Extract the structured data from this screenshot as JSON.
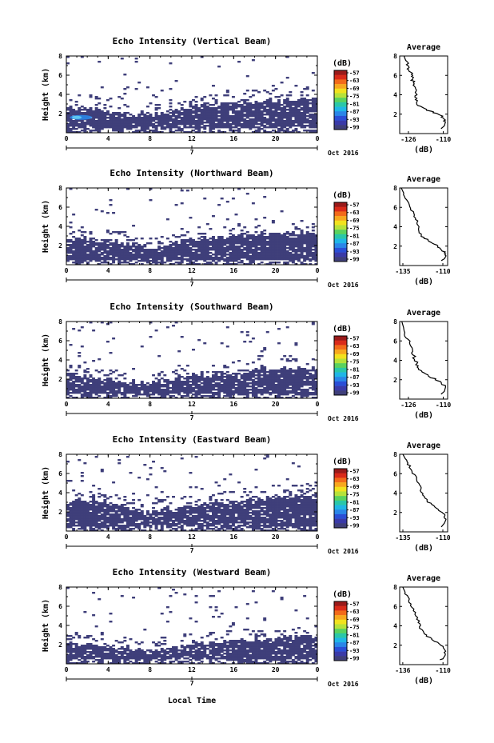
{
  "figure": {
    "xlabel": "Local Time",
    "date_label": "Oct 2016",
    "day_label": "7",
    "colorbar_unit": "(dB)",
    "colorbar_ticks": [
      "-57",
      "-63",
      "-69",
      "-75",
      "-81",
      "-87",
      "-93",
      "-99"
    ],
    "colorbar_colors": [
      "#9a1a1a",
      "#d92a1a",
      "#f26a1a",
      "#f7a81e",
      "#f2e21e",
      "#b6e23a",
      "#5ad25e",
      "#2ac7a8",
      "#20b6e6",
      "#2a86e8",
      "#2a4ed6",
      "#3a3aa8",
      "#3f3f7a"
    ],
    "echo_color": "#3f3f7a",
    "avg_title": "Average",
    "avg_xlabel": "(dB)"
  },
  "chart_data": [
    {
      "type": "heatmap",
      "title": "Echo Intensity (Vertical Beam)",
      "ylabel": "Height (km)",
      "xlim": [
        0,
        24
      ],
      "ylim": [
        0,
        8
      ],
      "xticks": [
        "0",
        "4",
        "8",
        "12",
        "16",
        "20",
        "0"
      ],
      "yticks": [
        "2",
        "4",
        "6",
        "8"
      ],
      "layer_top_km": [
        [
          0,
          2.8
        ],
        [
          2,
          2.6
        ],
        [
          4,
          2.2
        ],
        [
          6,
          1.9
        ],
        [
          8,
          2.0
        ],
        [
          10,
          2.2
        ],
        [
          12,
          2.9
        ],
        [
          14,
          3.0
        ],
        [
          16,
          3.1
        ],
        [
          18,
          3.3
        ],
        [
          20,
          3.4
        ],
        [
          22,
          3.5
        ],
        [
          24,
          3.5
        ]
      ],
      "enhanced_echo": "light blue near 0-3 LT at 1.5-2 km",
      "average_profile": {
        "title": "Average",
        "xticks": [
          "-126",
          "-110"
        ],
        "xlim": [
          -130,
          -108
        ],
        "ylim": [
          0,
          8
        ],
        "yticks": [
          "2",
          "4",
          "6",
          "8"
        ],
        "points": [
          [
            -128,
            8.0
          ],
          [
            -127,
            7.4
          ],
          [
            -126,
            6.8
          ],
          [
            -125,
            6.3
          ],
          [
            -124.5,
            5.9
          ],
          [
            -124,
            5.5
          ],
          [
            -123.5,
            5.0
          ],
          [
            -123,
            4.5
          ],
          [
            -122.5,
            4.0
          ],
          [
            -122.5,
            3.5
          ],
          [
            -122,
            3.1
          ],
          [
            -120,
            2.7
          ],
          [
            -116,
            2.3
          ],
          [
            -112,
            2.0
          ],
          [
            -110,
            1.6
          ],
          [
            -109,
            1.2
          ],
          [
            -109.5,
            0.8
          ],
          [
            -111,
            0.5
          ]
        ]
      }
    },
    {
      "type": "heatmap",
      "title": "Echo Intensity (Northward Beam)",
      "ylabel": "Height (km)",
      "xlim": [
        0,
        24
      ],
      "ylim": [
        0,
        8
      ],
      "xticks": [
        "0",
        "4",
        "8",
        "12",
        "16",
        "20",
        "0"
      ],
      "yticks": [
        "2",
        "4",
        "6",
        "8"
      ],
      "layer_top_km": [
        [
          0,
          2.7
        ],
        [
          2,
          2.7
        ],
        [
          4,
          2.5
        ],
        [
          6,
          2.0
        ],
        [
          8,
          1.8
        ],
        [
          10,
          2.2
        ],
        [
          12,
          2.7
        ],
        [
          14,
          2.9
        ],
        [
          16,
          3.0
        ],
        [
          18,
          3.1
        ],
        [
          20,
          3.2
        ],
        [
          22,
          3.4
        ],
        [
          24,
          3.4
        ]
      ],
      "average_profile": {
        "title": "Average",
        "xticks": [
          "-135",
          "-110"
        ],
        "xlim": [
          -137,
          -107
        ],
        "ylim": [
          0,
          8
        ],
        "yticks": [
          "2",
          "4",
          "6",
          "8"
        ],
        "points": [
          [
            -136,
            8.0
          ],
          [
            -134,
            7.3
          ],
          [
            -132,
            6.6
          ],
          [
            -130,
            5.9
          ],
          [
            -128,
            5.2
          ],
          [
            -126,
            4.6
          ],
          [
            -125,
            4.0
          ],
          [
            -125,
            3.5
          ],
          [
            -123,
            3.0
          ],
          [
            -119,
            2.6
          ],
          [
            -115,
            2.2
          ],
          [
            -112,
            1.8
          ],
          [
            -109,
            1.4
          ],
          [
            -108,
            1.0
          ],
          [
            -109,
            0.7
          ],
          [
            -111,
            0.5
          ]
        ]
      }
    },
    {
      "type": "heatmap",
      "title": "Echo Intensity (Southward Beam)",
      "ylabel": "Height (km)",
      "xlim": [
        0,
        24
      ],
      "ylim": [
        0,
        8
      ],
      "xticks": [
        "0",
        "4",
        "8",
        "12",
        "16",
        "20",
        "0"
      ],
      "yticks": [
        "2",
        "4",
        "6",
        "8"
      ],
      "layer_top_km": [
        [
          0,
          2.4
        ],
        [
          2,
          2.3
        ],
        [
          4,
          2.1
        ],
        [
          6,
          1.7
        ],
        [
          8,
          1.6
        ],
        [
          10,
          1.9
        ],
        [
          12,
          2.4
        ],
        [
          14,
          2.6
        ],
        [
          16,
          2.8
        ],
        [
          18,
          3.0
        ],
        [
          20,
          3.1
        ],
        [
          22,
          3.2
        ],
        [
          24,
          3.2
        ]
      ],
      "average_profile": {
        "title": "Average",
        "xticks": [
          "-126",
          "-110"
        ],
        "xlim": [
          -130,
          -108
        ],
        "ylim": [
          0,
          8
        ],
        "yticks": [
          "2",
          "4",
          "6",
          "8"
        ],
        "points": [
          [
            -129,
            8.0
          ],
          [
            -128,
            7.2
          ],
          [
            -127,
            6.5
          ],
          [
            -125.5,
            5.8
          ],
          [
            -124.5,
            5.1
          ],
          [
            -123.5,
            4.4
          ],
          [
            -122.5,
            3.8
          ],
          [
            -121.5,
            3.3
          ],
          [
            -120,
            2.8
          ],
          [
            -117,
            2.4
          ],
          [
            -113,
            2.0
          ],
          [
            -110.5,
            1.6
          ],
          [
            -109,
            1.2
          ],
          [
            -109.5,
            0.8
          ],
          [
            -111,
            0.5
          ]
        ]
      }
    },
    {
      "type": "heatmap",
      "title": "Echo Intensity (Eastward Beam)",
      "ylabel": "Height (km)",
      "xlim": [
        0,
        24
      ],
      "ylim": [
        0,
        8
      ],
      "xticks": [
        "0",
        "4",
        "8",
        "12",
        "16",
        "20",
        "0"
      ],
      "yticks": [
        "2",
        "4",
        "6",
        "8"
      ],
      "layer_top_km": [
        [
          0,
          3.2
        ],
        [
          2,
          3.3
        ],
        [
          4,
          3.1
        ],
        [
          6,
          2.4
        ],
        [
          8,
          2.0
        ],
        [
          10,
          2.3
        ],
        [
          12,
          2.7
        ],
        [
          14,
          3.0
        ],
        [
          16,
          3.2
        ],
        [
          18,
          3.3
        ],
        [
          20,
          3.5
        ],
        [
          22,
          3.7
        ],
        [
          24,
          3.8
        ]
      ],
      "average_profile": {
        "title": "Average",
        "xticks": [
          "-135",
          "-110"
        ],
        "xlim": [
          -137,
          -107
        ],
        "ylim": [
          0,
          8
        ],
        "yticks": [
          "2",
          "4",
          "6",
          "8"
        ],
        "points": [
          [
            -135,
            8.0
          ],
          [
            -133,
            7.4
          ],
          [
            -131,
            6.8
          ],
          [
            -129,
            6.2
          ],
          [
            -127,
            5.6
          ],
          [
            -125,
            5.0
          ],
          [
            -124,
            4.4
          ],
          [
            -122,
            3.8
          ],
          [
            -120,
            3.2
          ],
          [
            -116,
            2.7
          ],
          [
            -112,
            2.2
          ],
          [
            -109,
            1.8
          ],
          [
            -108,
            1.3
          ],
          [
            -109,
            0.9
          ],
          [
            -111,
            0.5
          ]
        ]
      }
    },
    {
      "type": "heatmap",
      "title": "Echo Intensity (Westward Beam)",
      "ylabel": "Height (km)",
      "xlim": [
        0,
        24
      ],
      "ylim": [
        0,
        8
      ],
      "xticks": [
        "0",
        "4",
        "8",
        "12",
        "16",
        "20",
        "0"
      ],
      "yticks": [
        "2",
        "4",
        "6",
        "8"
      ],
      "layer_top_km": [
        [
          0,
          2.2
        ],
        [
          2,
          2.1
        ],
        [
          4,
          1.9
        ],
        [
          6,
          1.5
        ],
        [
          8,
          1.4
        ],
        [
          10,
          1.7
        ],
        [
          12,
          2.1
        ],
        [
          14,
          2.3
        ],
        [
          16,
          2.4
        ],
        [
          18,
          2.6
        ],
        [
          20,
          2.7
        ],
        [
          22,
          2.9
        ],
        [
          24,
          3.0
        ]
      ],
      "average_profile": {
        "title": "Average",
        "xticks": [
          "-136",
          "-110"
        ],
        "xlim": [
          -138,
          -107
        ],
        "ylim": [
          0,
          8
        ],
        "yticks": [
          "2",
          "4",
          "6",
          "8"
        ],
        "points": [
          [
            -136,
            8.0
          ],
          [
            -134,
            7.3
          ],
          [
            -132,
            6.6
          ],
          [
            -130,
            5.9
          ],
          [
            -128,
            5.2
          ],
          [
            -126,
            4.5
          ],
          [
            -125,
            3.9
          ],
          [
            -123,
            3.3
          ],
          [
            -119,
            2.8
          ],
          [
            -115,
            2.4
          ],
          [
            -111,
            2.0
          ],
          [
            -109,
            1.5
          ],
          [
            -108.5,
            1.0
          ],
          [
            -110,
            0.6
          ],
          [
            -112,
            0.5
          ]
        ]
      }
    }
  ]
}
